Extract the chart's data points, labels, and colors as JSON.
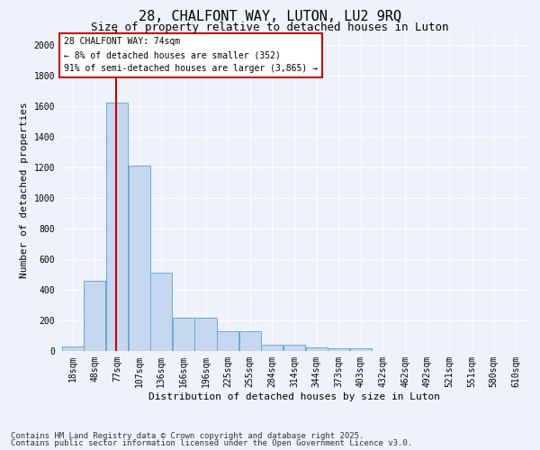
{
  "title": "28, CHALFONT WAY, LUTON, LU2 9RQ",
  "subtitle": "Size of property relative to detached houses in Luton",
  "xlabel": "Distribution of detached houses by size in Luton",
  "ylabel": "Number of detached properties",
  "bar_labels": [
    "18sqm",
    "48sqm",
    "77sqm",
    "107sqm",
    "136sqm",
    "166sqm",
    "196sqm",
    "225sqm",
    "255sqm",
    "284sqm",
    "314sqm",
    "344sqm",
    "373sqm",
    "403sqm",
    "432sqm",
    "462sqm",
    "492sqm",
    "521sqm",
    "551sqm",
    "580sqm",
    "610sqm"
  ],
  "bar_values": [
    30,
    460,
    1620,
    1210,
    510,
    220,
    220,
    130,
    130,
    40,
    40,
    25,
    20,
    15,
    0,
    0,
    0,
    0,
    0,
    0,
    0
  ],
  "bar_color": "#c5d8f0",
  "bar_edgecolor": "#6aaad4",
  "bar_linewidth": 0.7,
  "ylim": [
    0,
    2100
  ],
  "yticks": [
    0,
    200,
    400,
    600,
    800,
    1000,
    1200,
    1400,
    1600,
    1800,
    2000
  ],
  "red_line_bar_index": 1.95,
  "red_line_color": "#cc0000",
  "annotation_text": "28 CHALFONT WAY: 74sqm\n← 8% of detached houses are smaller (352)\n91% of semi-detached houses are larger (3,865) →",
  "annotation_box_color": "#ffffff",
  "annotation_box_edgecolor": "#cc0000",
  "footer_line1": "Contains HM Land Registry data © Crown copyright and database right 2025.",
  "footer_line2": "Contains public sector information licensed under the Open Government Licence v3.0.",
  "background_color": "#eef2fb",
  "grid_color": "#ffffff",
  "title_fontsize": 11,
  "subtitle_fontsize": 9,
  "axis_label_fontsize": 8,
  "tick_fontsize": 7,
  "annotation_fontsize": 7,
  "footer_fontsize": 6.5
}
